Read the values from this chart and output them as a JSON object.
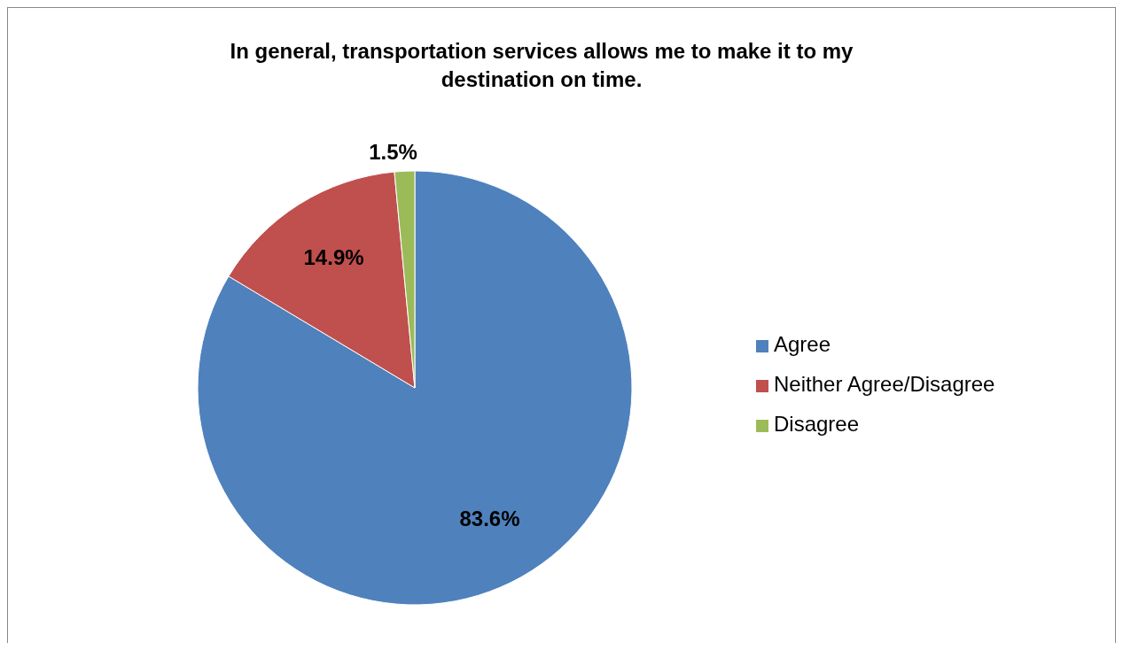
{
  "chart_data": {
    "type": "pie",
    "title": "In general, transportation services allows me to make it to my destination on time.",
    "categories": [
      "Agree",
      "Neither Agree/Disagree",
      "Disagree"
    ],
    "values": [
      83.6,
      14.9,
      1.5
    ],
    "colors": [
      "#4f81bd",
      "#c0504d",
      "#9bbb59"
    ],
    "value_labels": [
      "83.6%",
      "14.9%",
      "1.5%"
    ],
    "legend": "right"
  }
}
